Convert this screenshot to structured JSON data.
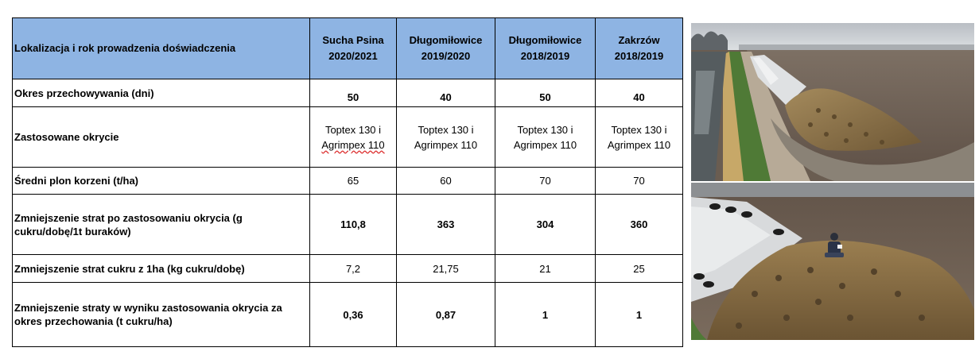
{
  "table": {
    "header": {
      "label": "Lokalizacja i rok prowadzenia doświadczenia",
      "locations": [
        {
          "name": "Sucha Psina",
          "years": "2020/2021"
        },
        {
          "name": "Długomiłowice",
          "years": "2019/2020"
        },
        {
          "name": "Długomiłowice",
          "years": "2018/2019"
        },
        {
          "name": "Zakrzów",
          "years": "2018/2019"
        }
      ]
    },
    "rows": [
      {
        "label": "Okres przechowywania (dni)",
        "values": [
          "50",
          "40",
          "50",
          "40"
        ]
      },
      {
        "label": "Zastosowane okrycie",
        "values": [
          {
            "line1": "Toptex 130 i",
            "line2": "Agrimpex 110"
          },
          {
            "line1": "Toptex 130 i",
            "line2": "Agrimpex 110"
          },
          {
            "line1": "Toptex 130 i",
            "line2": "Agrimpex 110"
          },
          {
            "line1": "Toptex 130 i",
            "line2": "Agrimpex 110"
          }
        ]
      },
      {
        "label": "Średni plon korzeni (t/ha)",
        "values": [
          "65",
          "60",
          "70",
          "70"
        ]
      },
      {
        "label": "Zmniejszenie strat po zastosowaniu okrycia (g cukru/dobę/1t buraków)",
        "values": [
          "110,8",
          "363",
          "304",
          "360"
        ]
      },
      {
        "label": "Zmniejszenie strat cukru z 1ha (kg cukru/dobę)",
        "values": [
          "7,2",
          "21,75",
          "21",
          "25"
        ]
      },
      {
        "label": "Zmniejszenie straty w wyniku zastosowania okrycia za okres przechowania (t cukru/ha)",
        "values": [
          "0,36",
          "0,87",
          "1",
          "1"
        ]
      }
    ]
  },
  "photos": {
    "top": {
      "subject": "covered-beet-pile-field-photo"
    },
    "bottom": {
      "subject": "beet-pile-with-person-photo"
    },
    "colors": {
      "sky": "#c9cdd2",
      "field": "#6b5e52",
      "grass": "#4f7a36",
      "beets": "#8d7348",
      "cover": "#dfe1e3",
      "water": "#555c5f"
    }
  }
}
